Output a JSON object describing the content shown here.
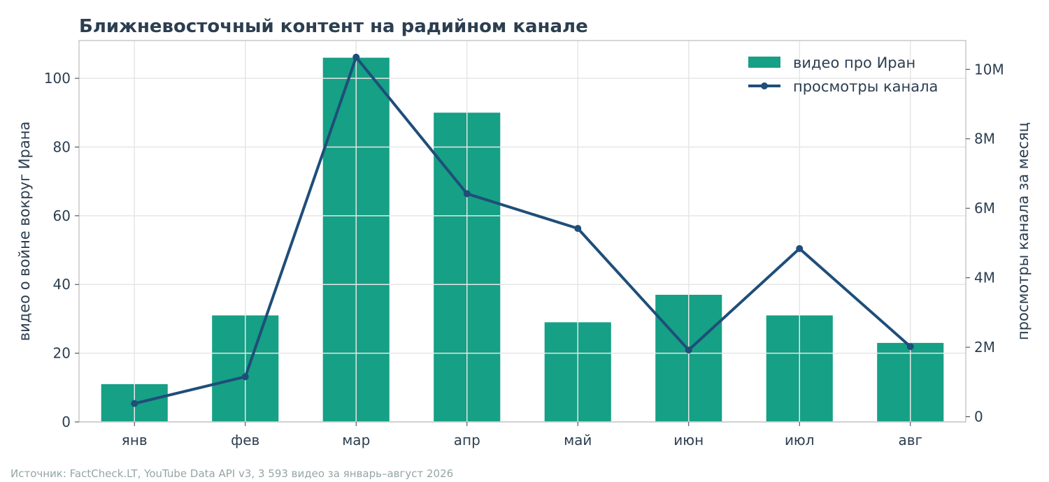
{
  "chart_data": {
    "type": "bar",
    "title": "Ближневосточный контент на радийном канале",
    "categories": [
      "янв",
      "фев",
      "мар",
      "апр",
      "май",
      "июн",
      "июл",
      "авг"
    ],
    "series": [
      {
        "name": "видео про Иран",
        "type": "bar",
        "axis": "left",
        "color": "#16a085",
        "values": [
          11,
          31,
          106,
          90,
          29,
          37,
          31,
          23
        ]
      },
      {
        "name": "просмотры канала",
        "type": "line",
        "axis": "right",
        "color": "#1f4e79",
        "values": [
          380000,
          1150000,
          10350000,
          6420000,
          5420000,
          1920000,
          4840000,
          2020000
        ]
      }
    ],
    "ylabel": "видео о войне вокруг Ирана",
    "ylim": [
      0,
      111
    ],
    "yticks": [
      0,
      20,
      40,
      60,
      80,
      100
    ],
    "y2label": "просмотры канала за месяц",
    "y2lim": [
      -150000,
      10830000
    ],
    "y2ticks": [
      0,
      2000000,
      4000000,
      6000000,
      8000000,
      10000000
    ],
    "y2ticklabels": [
      "0",
      "2M",
      "4M",
      "6M",
      "8M",
      "10M"
    ],
    "grid": true,
    "legend": "top-right"
  },
  "source": "Источник: FactCheck.LT, YouTube Data API v3, 3 593 видео за январь–август 2026"
}
